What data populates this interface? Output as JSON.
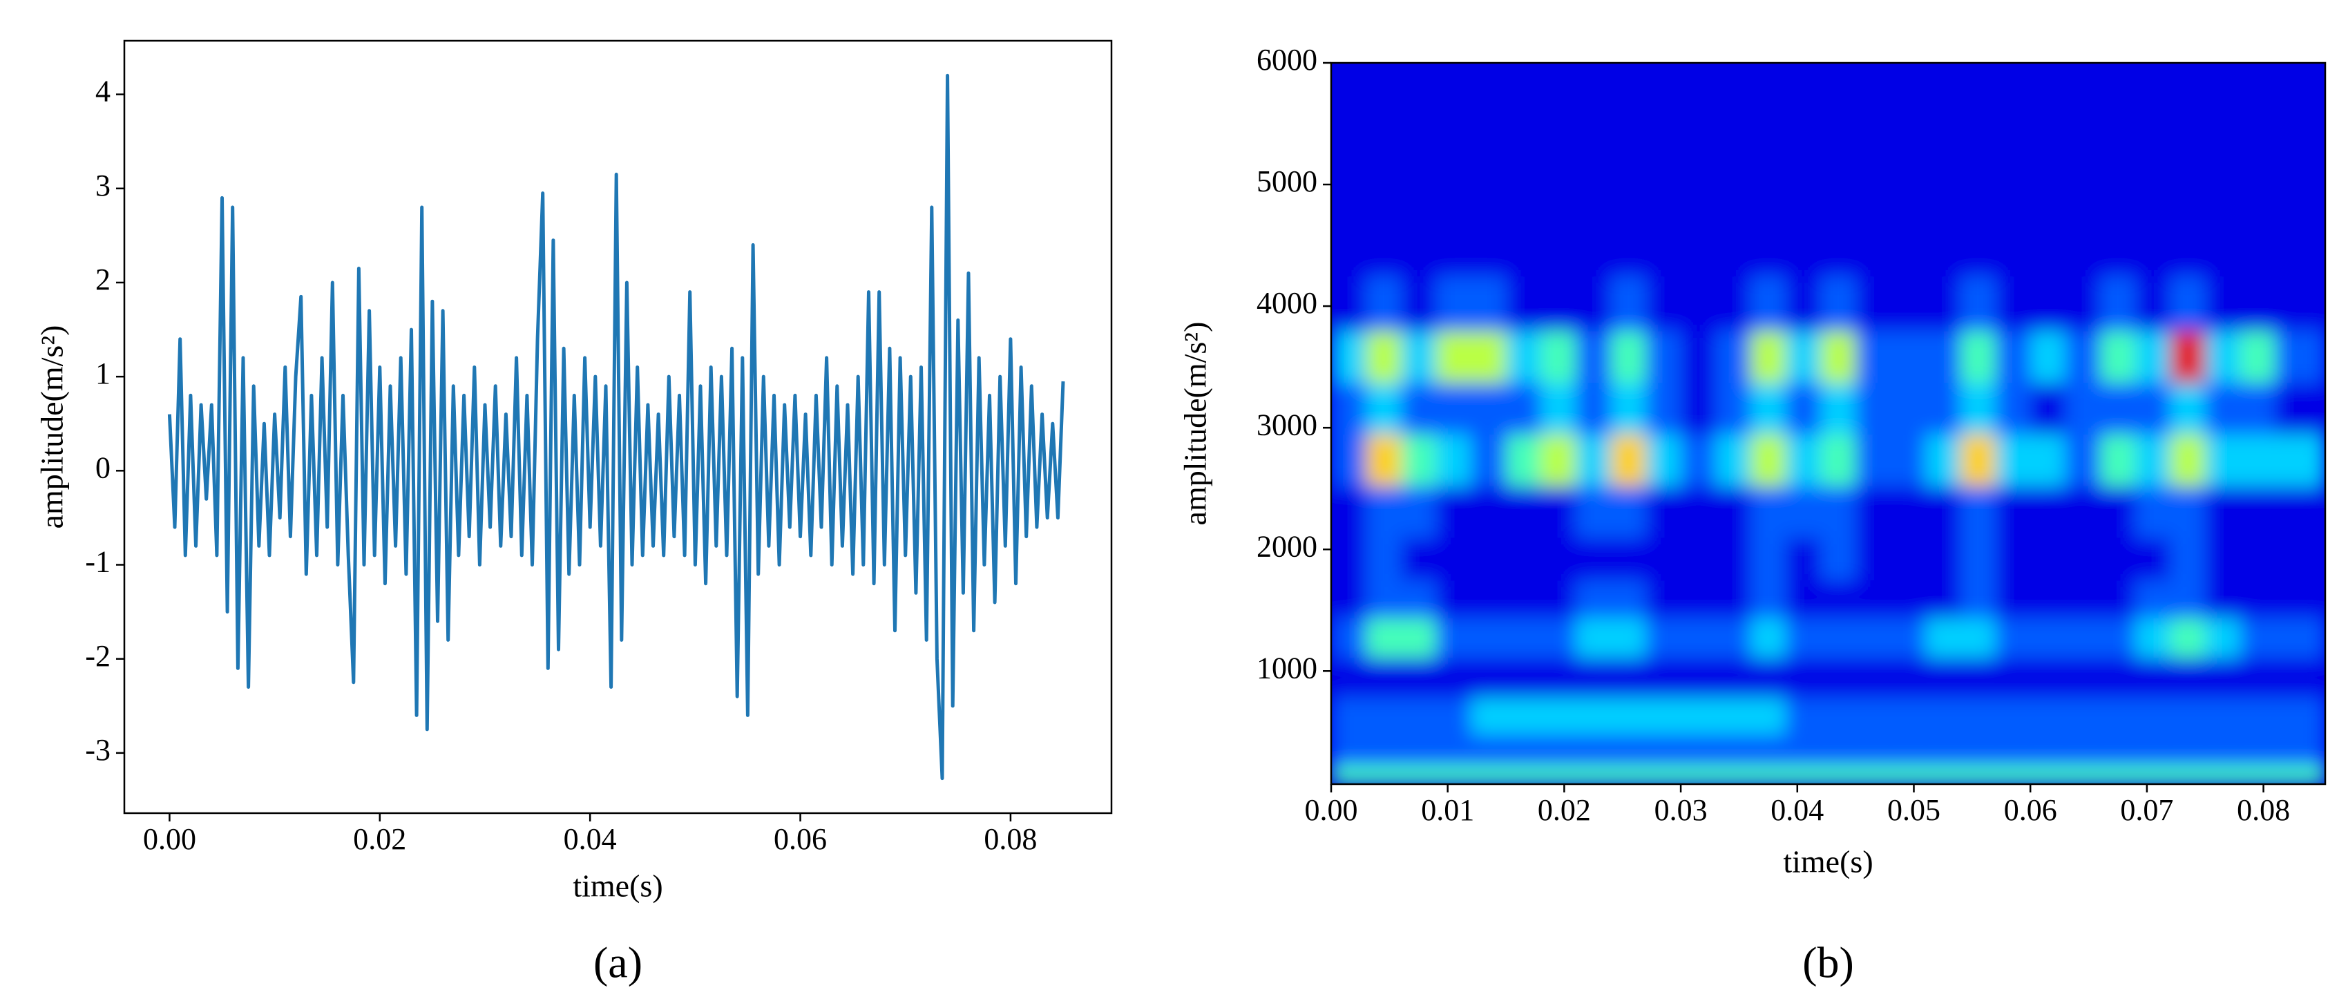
{
  "chart_data": [
    {
      "type": "line",
      "label": "(a)",
      "xlabel": "time(s)",
      "ylabel": "amplitude(m/s²)",
      "color": "#1f77b4",
      "xlim": [
        -0.0043,
        0.0896
      ],
      "ylim": [
        -3.64,
        4.57
      ],
      "xticks": [
        {
          "value": 0,
          "label": "0.00"
        },
        {
          "value": 0.02,
          "label": "0.02"
        },
        {
          "value": 0.04,
          "label": "0.04"
        },
        {
          "value": 0.06,
          "label": "0.06"
        },
        {
          "value": 0.08,
          "label": "0.08"
        }
      ],
      "yticks": [
        -3,
        -2,
        -1,
        0,
        1,
        2,
        3,
        4
      ],
      "x": [
        0,
        0.0005,
        0.001,
        0.0015,
        0.002,
        0.0025,
        0.003,
        0.0035,
        0.004,
        0.0045,
        0.005,
        0.0055,
        0.006,
        0.0065,
        0.007,
        0.0075,
        0.008,
        0.0085,
        0.009,
        0.0095,
        0.01,
        0.0105,
        0.011,
        0.0115,
        0.012,
        0.0125,
        0.013,
        0.0135,
        0.014,
        0.0145,
        0.015,
        0.0155,
        0.016,
        0.0165,
        0.017,
        0.0175,
        0.018,
        0.0185,
        0.019,
        0.0195,
        0.02,
        0.0205,
        0.021,
        0.0215,
        0.022,
        0.0225,
        0.023,
        0.0235,
        0.024,
        0.0245,
        0.025,
        0.0255,
        0.026,
        0.0265,
        0.027,
        0.0275,
        0.028,
        0.0285,
        0.029,
        0.0295,
        0.03,
        0.0305,
        0.031,
        0.0315,
        0.032,
        0.0325,
        0.033,
        0.0335,
        0.034,
        0.0345,
        0.035,
        0.0355,
        0.036,
        0.0365,
        0.037,
        0.0375,
        0.038,
        0.0385,
        0.039,
        0.0395,
        0.04,
        0.0405,
        0.041,
        0.0415,
        0.042,
        0.0425,
        0.043,
        0.0435,
        0.044,
        0.0445,
        0.045,
        0.0455,
        0.046,
        0.0465,
        0.047,
        0.0475,
        0.048,
        0.0485,
        0.049,
        0.0495,
        0.05,
        0.0505,
        0.051,
        0.0515,
        0.052,
        0.0525,
        0.053,
        0.0535,
        0.054,
        0.0545,
        0.055,
        0.0555,
        0.056,
        0.0565,
        0.057,
        0.0575,
        0.058,
        0.0585,
        0.059,
        0.0595,
        0.06,
        0.0605,
        0.061,
        0.0615,
        0.062,
        0.0625,
        0.063,
        0.0635,
        0.064,
        0.0645,
        0.065,
        0.0655,
        0.066,
        0.0665,
        0.067,
        0.0675,
        0.068,
        0.0685,
        0.069,
        0.0695,
        0.07,
        0.0705,
        0.071,
        0.0715,
        0.072,
        0.0725,
        0.073,
        0.0735,
        0.074,
        0.0745,
        0.075,
        0.0755,
        0.076,
        0.0765,
        0.077,
        0.0775,
        0.078,
        0.0785,
        0.079,
        0.0795,
        0.08,
        0.0805,
        0.081,
        0.0815,
        0.082,
        0.0825,
        0.083,
        0.0835,
        0.084,
        0.0845,
        0.085
      ],
      "values": [
        0.6,
        -0.6,
        1.4,
        -0.9,
        0.8,
        -0.8,
        0.7,
        -0.3,
        0.7,
        -0.9,
        2.9,
        -1.5,
        2.8,
        -2.1,
        1.2,
        -2.3,
        0.9,
        -0.8,
        0.5,
        -0.9,
        0.6,
        -0.5,
        1.1,
        -0.7,
        1.0,
        1.85,
        -1.1,
        0.8,
        -0.9,
        1.2,
        -0.6,
        2.0,
        -1.0,
        0.8,
        -0.9,
        -2.25,
        2.15,
        -1.0,
        1.7,
        -0.9,
        1.1,
        -1.2,
        0.9,
        -0.8,
        1.2,
        -1.1,
        1.5,
        -2.6,
        2.8,
        -2.75,
        1.8,
        -1.6,
        1.7,
        -1.8,
        0.9,
        -0.9,
        0.8,
        -0.7,
        1.1,
        -1.0,
        0.7,
        -0.6,
        0.9,
        -0.8,
        0.6,
        -0.7,
        1.2,
        -0.9,
        0.8,
        -1.0,
        1.4,
        2.95,
        -2.1,
        2.45,
        -1.9,
        1.3,
        -1.1,
        0.8,
        -1.0,
        1.2,
        -0.6,
        1.0,
        -0.8,
        0.9,
        -2.3,
        3.15,
        -1.8,
        2.0,
        -1.0,
        1.1,
        -0.9,
        0.7,
        -0.8,
        0.6,
        -0.9,
        1.0,
        -0.7,
        0.8,
        -0.9,
        1.9,
        -1.0,
        0.9,
        -1.2,
        1.1,
        -0.8,
        1.0,
        -0.9,
        1.3,
        -2.4,
        1.2,
        -2.6,
        2.4,
        -1.1,
        1.0,
        -0.8,
        0.8,
        -1.0,
        0.7,
        -0.6,
        0.8,
        -0.7,
        0.6,
        -0.9,
        0.8,
        -0.6,
        1.2,
        -1.0,
        0.9,
        -0.8,
        0.7,
        -1.1,
        1.0,
        -1.0,
        1.9,
        -1.2,
        1.9,
        -1.0,
        1.3,
        -1.7,
        1.2,
        -0.9,
        1.0,
        -1.3,
        1.1,
        -1.8,
        2.8,
        -2.0,
        -3.27,
        4.2,
        -2.5,
        1.6,
        -1.3,
        2.1,
        -1.7,
        1.2,
        -1.0,
        0.8,
        -1.4,
        1.0,
        -0.8,
        1.4,
        -1.2,
        1.1,
        -0.7,
        0.9,
        -0.6,
        0.6,
        -0.5,
        0.5,
        -0.5,
        0.95
      ]
    },
    {
      "type": "heatmap",
      "label": "(b)",
      "xlabel": "time(s)",
      "ylabel": "amplitude(m/s²)",
      "colormap": "jet",
      "xlim": [
        0,
        0.0853
      ],
      "ylim": [
        70,
        6000
      ],
      "xticks": [
        {
          "value": 0,
          "label": "0.00"
        },
        {
          "value": 0.01,
          "label": "0.01"
        },
        {
          "value": 0.02,
          "label": "0.02"
        },
        {
          "value": 0.03,
          "label": "0.03"
        },
        {
          "value": 0.04,
          "label": "0.04"
        },
        {
          "value": 0.05,
          "label": "0.05"
        },
        {
          "value": 0.06,
          "label": "0.06"
        },
        {
          "value": 0.07,
          "label": "0.07"
        },
        {
          "value": 0.08,
          "label": "0.08"
        }
      ],
      "yticks": [
        1000,
        2000,
        3000,
        4000,
        5000,
        6000
      ],
      "x": [
        0.0015,
        0.0045,
        0.0075,
        0.0105,
        0.0135,
        0.0165,
        0.0195,
        0.0225,
        0.0255,
        0.0285,
        0.0315,
        0.0345,
        0.0375,
        0.0405,
        0.0435,
        0.0465,
        0.0495,
        0.0525,
        0.0555,
        0.0585,
        0.0615,
        0.0645,
        0.0675,
        0.0705,
        0.0735,
        0.0765,
        0.0795,
        0.0825
      ],
      "y": [
        100,
        350,
        620,
        950,
        1280,
        1600,
        1900,
        2300,
        2750,
        3150,
        3600,
        4000,
        4500,
        5000,
        5500,
        5950
      ],
      "z": [
        [
          4,
          4,
          4,
          4,
          4,
          4,
          4,
          4,
          4,
          4,
          4,
          4,
          4,
          4,
          4,
          4,
          4,
          4,
          4,
          4,
          4,
          4,
          4,
          4,
          4,
          4,
          4,
          4
        ],
        [
          2,
          2,
          2,
          2,
          2,
          2,
          2,
          2,
          2,
          2,
          2,
          2,
          2,
          2,
          2,
          2,
          2,
          2,
          2,
          2,
          2,
          2,
          2,
          2,
          2,
          2,
          2,
          2
        ],
        [
          2,
          2,
          2,
          2,
          3,
          3,
          3,
          3,
          3,
          3,
          3,
          3,
          3,
          2,
          2,
          2,
          2,
          2,
          2,
          2,
          2,
          2,
          2,
          2,
          2,
          2,
          2,
          2
        ],
        [
          1,
          1,
          1,
          1,
          1,
          1,
          1,
          1,
          1,
          1,
          1,
          1,
          1,
          1,
          1,
          1,
          1,
          1,
          1,
          1,
          1,
          1,
          1,
          1,
          1,
          1,
          1,
          1
        ],
        [
          2,
          4,
          4,
          2,
          2,
          2,
          2,
          3,
          3,
          2,
          2,
          2,
          3,
          2,
          2,
          2,
          2,
          3,
          3,
          2,
          2,
          2,
          2,
          3,
          4,
          3,
          2,
          2
        ],
        [
          1,
          2,
          2,
          1,
          1,
          1,
          1,
          2,
          2,
          1,
          1,
          1,
          2,
          1,
          1,
          1,
          1,
          1,
          2,
          1,
          1,
          1,
          1,
          2,
          2,
          1,
          1,
          1
        ],
        [
          1,
          2,
          1,
          1,
          1,
          1,
          1,
          1,
          1,
          1,
          1,
          1,
          2,
          1,
          2,
          1,
          1,
          1,
          2,
          1,
          1,
          1,
          1,
          1,
          2,
          1,
          1,
          1
        ],
        [
          1,
          2,
          2,
          1,
          1,
          1,
          1,
          2,
          2,
          1,
          1,
          1,
          2,
          2,
          2,
          1,
          1,
          1,
          2,
          1,
          1,
          1,
          1,
          2,
          2,
          1,
          1,
          1
        ],
        [
          2,
          6,
          4,
          3,
          2,
          4,
          5,
          3,
          6,
          3,
          2,
          3,
          5,
          3,
          4,
          2,
          2,
          3,
          6,
          3,
          3,
          2,
          4,
          3,
          5,
          3,
          3,
          3
        ],
        [
          2,
          3,
          2,
          2,
          2,
          2,
          3,
          2,
          3,
          2,
          1,
          2,
          3,
          2,
          3,
          2,
          2,
          2,
          3,
          2,
          1,
          2,
          2,
          2,
          3,
          2,
          2,
          1
        ],
        [
          3,
          5,
          3,
          5,
          5,
          3,
          4,
          2,
          4,
          2,
          1,
          2,
          5,
          3,
          5,
          2,
          2,
          2,
          4,
          2,
          3,
          2,
          4,
          3,
          8,
          3,
          4,
          2
        ],
        [
          1,
          2,
          1,
          2,
          2,
          1,
          1,
          1,
          2,
          1,
          1,
          1,
          2,
          1,
          2,
          1,
          1,
          1,
          2,
          1,
          1,
          1,
          2,
          1,
          2,
          1,
          1,
          1
        ],
        [
          1,
          1,
          1,
          1,
          1,
          1,
          1,
          1,
          1,
          1,
          1,
          1,
          1,
          1,
          1,
          1,
          1,
          1,
          1,
          1,
          1,
          1,
          1,
          1,
          1,
          1,
          1,
          1
        ],
        [
          1,
          1,
          1,
          1,
          1,
          1,
          1,
          1,
          1,
          1,
          1,
          1,
          1,
          1,
          1,
          1,
          1,
          1,
          1,
          1,
          1,
          1,
          1,
          1,
          1,
          1,
          1,
          1
        ],
        [
          1,
          1,
          1,
          1,
          1,
          1,
          1,
          1,
          1,
          1,
          1,
          1,
          1,
          1,
          1,
          1,
          1,
          1,
          1,
          1,
          1,
          1,
          1,
          1,
          1,
          1,
          1,
          1
        ],
        [
          1,
          1,
          1,
          1,
          1,
          1,
          1,
          1,
          1,
          1,
          1,
          1,
          1,
          1,
          1,
          1,
          1,
          1,
          1,
          1,
          1,
          1,
          1,
          1,
          1,
          1,
          1,
          1
        ]
      ]
    }
  ]
}
